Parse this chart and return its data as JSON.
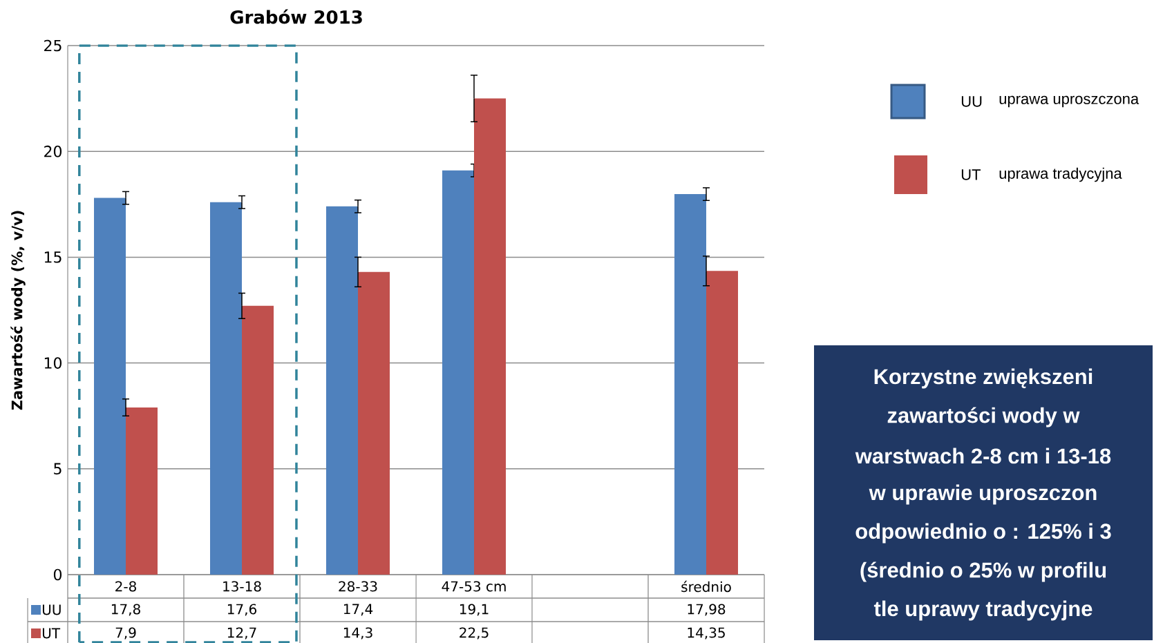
{
  "chart_data": {
    "type": "bar",
    "title": "Grabów 2013",
    "ylabel": "Zawartość wody (%, v/v)",
    "categories": [
      "2-8",
      "13-18",
      "28-33",
      "47-53 cm",
      null,
      "średnio"
    ],
    "series": [
      {
        "name": "UU",
        "color": "#4f81bd",
        "values": [
          17.8,
          17.6,
          17.4,
          19.1,
          null,
          17.98
        ],
        "errors": [
          0.3,
          0.3,
          0.3,
          0.3,
          null,
          0.3
        ],
        "value_labels": [
          "17,8",
          "17,6",
          "17,4",
          "19,1",
          null,
          "17,98"
        ]
      },
      {
        "name": "UT",
        "color": "#c0504d",
        "values": [
          7.9,
          12.7,
          14.3,
          22.5,
          null,
          14.35
        ],
        "errors": [
          0.4,
          0.6,
          0.7,
          1.1,
          null,
          0.7
        ],
        "value_labels": [
          "7,9",
          "12,7",
          "14,3",
          "22,5",
          null,
          "14,35"
        ]
      }
    ],
    "ylim": [
      0,
      25
    ],
    "yticks": [
      0,
      5,
      10,
      15,
      20,
      25
    ],
    "grid": "y",
    "legend": "bottom left",
    "annotations": [
      "uprawa uproszczona",
      "uprawa tradycyjna",
      "Korzystne zwiększeni",
      "zawartości wody w",
      "warstwach 2-8 cm  i 13-18",
      "w uprawie uproszczon",
      "odpowiednio o : 125% i 3",
      "(średnio o 25% w profilu",
      "tle uprawy tradycyjne"
    ]
  }
}
